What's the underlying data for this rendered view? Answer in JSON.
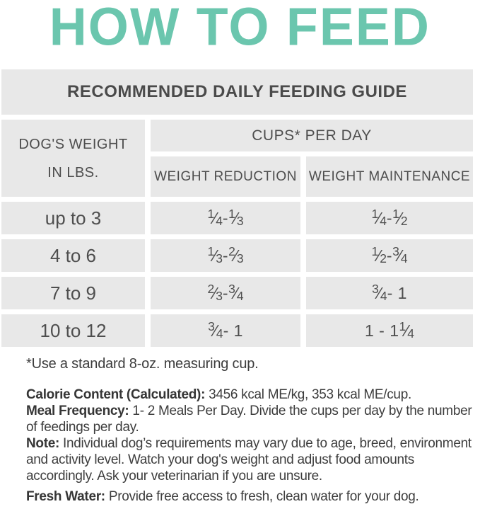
{
  "title": "HOW TO FEED",
  "colors": {
    "accent_teal": "#6bc6ae",
    "cell_gray": "#e8e8e8",
    "text_dark": "#3d3d3d"
  },
  "table": {
    "title": "RECOMMENDED DAILY FEEDING GUIDE",
    "weight_header_line1": "DOG'S WEIGHT",
    "weight_header_line2": "IN LBS.",
    "cups_header": "CUPS* PER DAY",
    "col_reduction": "WEIGHT REDUCTION",
    "col_maintenance": "WEIGHT MAINTENANCE",
    "rows": [
      {
        "weight": "up to 3",
        "reduction": "¼ - ⅓",
        "maintenance": "¼ - ½"
      },
      {
        "weight": "4 to 6",
        "reduction": "⅓ - ⅔",
        "maintenance": "½ - ¾"
      },
      {
        "weight": "7 to 9",
        "reduction": "⅔ - ¾",
        "maintenance": "¾ - 1"
      },
      {
        "weight": "10 to 12",
        "reduction": "¾ - 1",
        "maintenance": "1 - 1¼"
      }
    ]
  },
  "footnote": "*Use a standard 8-oz. measuring cup.",
  "notes": [
    {
      "label": "Calorie Content (Calculated):",
      "text": "3456 kcal ME/kg, 353 kcal ME/cup."
    },
    {
      "label": "Meal Frequency:",
      "text": "1- 2 Meals Per Day. Divide the cups per day by the number of feedings per day."
    },
    {
      "label": "Note:",
      "text": "Individual dog’s requirements may vary due to age, breed, environment and activity level. Watch your dog's weight and adjust food amounts accordingly.  Ask your veterinarian if you are unsure."
    },
    {
      "label": "Fresh Water:",
      "text": "Provide free access to fresh, clean water for your dog."
    }
  ]
}
